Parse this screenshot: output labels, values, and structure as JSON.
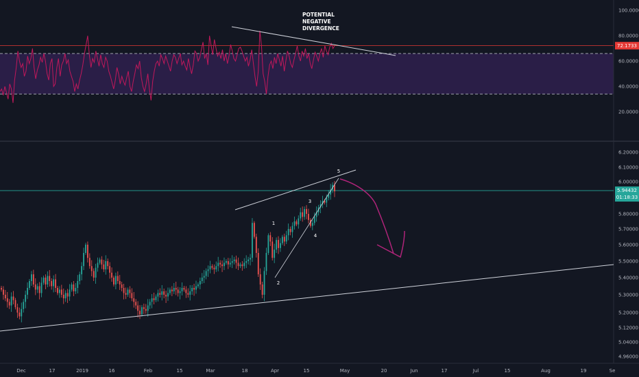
{
  "colors": {
    "background": "#131722",
    "up": "#26a69a",
    "down": "#ef5350",
    "rsi_line": "#c2185b",
    "rsi_band": "#2a1e47",
    "trend_line": "#d1d4dc",
    "projection": "#b0247a",
    "price_marker": "#26a69a",
    "rsi_marker": "#e53935",
    "divider": "#2a2e39",
    "axis_text": "#b2b5be"
  },
  "annotations": {
    "divergence_note": [
      "POTENTIAL",
      "NEGATIVE",
      "DIVERGENCE"
    ],
    "waves": [
      "1",
      "2",
      "3",
      "4",
      "5"
    ]
  },
  "chart_data": [
    {
      "type": "line",
      "panel": "indicator",
      "y_ticks": [
        "100.0000",
        "80.0000",
        "60.0000",
        "40.0000",
        "20.0000"
      ],
      "ylim": [
        0,
        105
      ],
      "band": [
        34,
        66
      ],
      "current_value": 72.1733,
      "current_label": "72.1733",
      "reference_level": 72.17,
      "values": [
        36,
        38,
        33,
        40,
        35,
        30,
        42,
        38,
        27,
        45,
        55,
        68,
        60,
        55,
        58,
        48,
        52,
        64,
        58,
        62,
        70,
        55,
        46,
        53,
        57,
        63,
        59,
        66,
        60,
        50,
        45,
        58,
        62,
        40,
        42,
        55,
        62,
        48,
        57,
        60,
        66,
        58,
        61,
        52,
        48,
        44,
        36,
        42,
        38,
        45,
        50,
        57,
        66,
        73,
        80,
        65,
        55,
        62,
        59,
        68,
        62,
        56,
        65,
        58,
        55,
        63,
        60,
        52,
        48,
        43,
        38,
        45,
        55,
        50,
        42,
        48,
        44,
        41,
        47,
        52,
        40,
        36,
        44,
        50,
        57,
        54,
        60,
        47,
        40,
        36,
        42,
        50,
        38,
        29,
        44,
        52,
        58,
        60,
        56,
        65,
        62,
        58,
        64,
        60,
        56,
        52,
        60,
        65,
        63,
        58,
        62,
        66,
        57,
        60,
        56,
        53,
        62,
        55,
        50,
        57,
        68,
        66,
        60,
        63,
        69,
        75,
        62,
        66,
        57,
        80,
        72,
        65,
        77,
        70,
        64,
        67,
        62,
        69,
        60,
        66,
        58,
        64,
        73,
        68,
        62,
        60,
        65,
        70,
        71,
        68,
        64,
        60,
        63,
        56,
        61,
        69,
        58,
        48,
        40,
        52,
        84,
        72,
        50,
        44,
        34,
        48,
        57,
        60,
        54,
        63,
        58,
        66,
        61,
        56,
        64,
        52,
        60,
        68,
        64,
        58,
        55,
        61,
        66,
        72,
        64,
        60,
        68,
        64,
        70,
        62,
        66,
        58,
        54,
        61,
        67,
        64,
        60,
        66,
        70,
        63,
        72,
        68,
        65,
        71,
        74,
        70,
        72
      ]
    },
    {
      "type": "candlestick",
      "panel": "price",
      "y_ticks": [
        "6.20000",
        "6.10000",
        "6.00000",
        "5.80000",
        "5.70000",
        "5.60000",
        "5.50000",
        "5.40000",
        "5.30000",
        "5.20000",
        "5.12000",
        "5.04000",
        "4.96000"
      ],
      "ylim": [
        4.94,
        6.24
      ],
      "current_price": 5.94432,
      "current_label": "5.94432",
      "countdown": "01:18:33",
      "x_ticks": [
        "Dec",
        "17",
        "2019",
        "16",
        "Feb",
        "15",
        "Mar",
        "18",
        "Apr",
        "15",
        "May",
        "20",
        "Jun",
        "17",
        "Jul",
        "15",
        "Aug",
        "19",
        "Se"
      ],
      "closes": [
        5.33,
        5.3,
        5.28,
        5.26,
        5.24,
        5.29,
        5.27,
        5.23,
        5.2,
        5.18,
        5.22,
        5.26,
        5.3,
        5.34,
        5.38,
        5.42,
        5.36,
        5.33,
        5.35,
        5.31,
        5.37,
        5.4,
        5.36,
        5.41,
        5.38,
        5.35,
        5.39,
        5.34,
        5.31,
        5.33,
        5.3,
        5.28,
        5.31,
        5.29,
        5.33,
        5.36,
        5.32,
        5.34,
        5.38,
        5.42,
        5.47,
        5.55,
        5.6,
        5.52,
        5.47,
        5.44,
        5.4,
        5.46,
        5.49,
        5.51,
        5.48,
        5.45,
        5.5,
        5.47,
        5.43,
        5.4,
        5.36,
        5.41,
        5.38,
        5.36,
        5.34,
        5.31,
        5.3,
        5.33,
        5.31,
        5.28,
        5.26,
        5.24,
        5.21,
        5.19,
        5.23,
        5.22,
        5.21,
        5.24,
        5.26,
        5.28,
        5.27,
        5.29,
        5.31,
        5.3,
        5.32,
        5.3,
        5.29,
        5.31,
        5.33,
        5.32,
        5.34,
        5.33,
        5.31,
        5.32,
        5.34,
        5.33,
        5.31,
        5.3,
        5.32,
        5.34,
        5.33,
        5.35,
        5.36,
        5.38,
        5.4,
        5.41,
        5.44,
        5.45,
        5.47,
        5.46,
        5.45,
        5.47,
        5.49,
        5.48,
        5.47,
        5.49,
        5.5,
        5.48,
        5.49,
        5.5,
        5.51,
        5.49,
        5.47,
        5.48,
        5.47,
        5.49,
        5.5,
        5.51,
        5.52,
        5.74,
        5.65,
        5.55,
        5.42,
        5.36,
        5.3,
        5.44,
        5.55,
        5.66,
        5.62,
        5.52,
        5.57,
        5.63,
        5.58,
        5.61,
        5.65,
        5.62,
        5.66,
        5.7,
        5.68,
        5.72,
        5.75,
        5.73,
        5.77,
        5.81,
        5.78,
        5.83,
        5.8,
        5.76,
        5.72,
        5.74,
        5.78,
        5.81,
        5.84,
        5.86,
        5.88,
        5.87,
        5.9,
        5.92,
        5.95,
        5.98,
        5.94
      ]
    }
  ]
}
